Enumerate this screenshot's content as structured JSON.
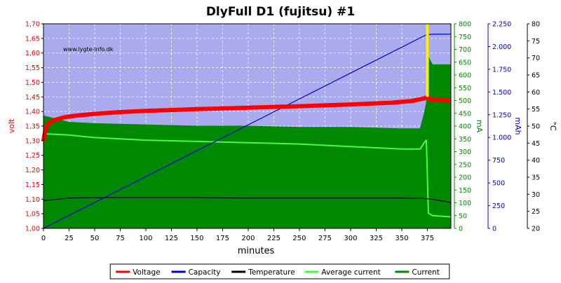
{
  "chart_data": {
    "type": "line",
    "title": "DlyFull D1 (fujitsu) #1",
    "watermark": "www.lygte-info.dk",
    "xlabel": "minutes",
    "xlim": [
      0,
      398
    ],
    "x_ticks": [
      "0",
      "25",
      "50",
      "75",
      "100",
      "125",
      "150",
      "175",
      "200",
      "225",
      "250",
      "275",
      "300",
      "325",
      "350",
      "375"
    ],
    "grid": true,
    "background_color": "#aaaaee",
    "axes": {
      "volt": {
        "label": "volt",
        "color": "#ee0000",
        "range": [
          1.0,
          1.7
        ],
        "ticks": [
          "1,00",
          "1,05",
          "1,10",
          "1,15",
          "1,20",
          "1,25",
          "1,30",
          "1,35",
          "1,40",
          "1,45",
          "1,50",
          "1,55",
          "1,60",
          "1,65",
          "1,70"
        ]
      },
      "ma": {
        "label": "mA",
        "color": "#008800",
        "range": [
          0,
          800
        ],
        "ticks": [
          "0",
          "50",
          "100",
          "150",
          "200",
          "250",
          "300",
          "350",
          "400",
          "450",
          "500",
          "550",
          "600",
          "650",
          "700",
          "750",
          "800"
        ]
      },
      "mah": {
        "label": "mAh",
        "color": "#0000cc",
        "range": [
          0,
          2250
        ],
        "ticks": [
          "0",
          "250",
          "500",
          "750",
          "1.000",
          "1.250",
          "1.500",
          "1.750",
          "2.000",
          "2.250"
        ]
      },
      "temp": {
        "label": "°C",
        "color": "#000000",
        "range": [
          20,
          80
        ],
        "ticks": [
          "20",
          "25",
          "30",
          "35",
          "40",
          "45",
          "50",
          "55",
          "60",
          "65",
          "70",
          "75",
          "80"
        ]
      }
    },
    "series": [
      {
        "name": "Voltage",
        "axis": "volt",
        "color": "#ff0000",
        "points": [
          [
            0,
            1.3
          ],
          [
            2,
            1.34
          ],
          [
            5,
            1.36
          ],
          [
            10,
            1.37
          ],
          [
            20,
            1.38
          ],
          [
            30,
            1.385
          ],
          [
            50,
            1.392
          ],
          [
            75,
            1.398
          ],
          [
            100,
            1.402
          ],
          [
            150,
            1.408
          ],
          [
            200,
            1.413
          ],
          [
            250,
            1.418
          ],
          [
            300,
            1.424
          ],
          [
            340,
            1.43
          ],
          [
            360,
            1.436
          ],
          [
            372,
            1.445
          ],
          [
            376,
            1.452
          ],
          [
            378,
            1.44
          ],
          [
            398,
            1.437
          ]
        ]
      },
      {
        "name": "Capacity",
        "axis": "mah",
        "color": "#0000cc",
        "points": [
          [
            0,
            0
          ],
          [
            374,
            2130
          ],
          [
            380,
            2135
          ],
          [
            398,
            2137
          ]
        ]
      },
      {
        "name": "Temperature",
        "axis": "temp",
        "color": "#000000",
        "points": [
          [
            0,
            28.2
          ],
          [
            10,
            28.4
          ],
          [
            25,
            28.9
          ],
          [
            50,
            29.0
          ],
          [
            100,
            29.0
          ],
          [
            150,
            29.0
          ],
          [
            200,
            28.9
          ],
          [
            250,
            28.9
          ],
          [
            300,
            28.9
          ],
          [
            350,
            28.9
          ],
          [
            370,
            28.8
          ],
          [
            380,
            28.5
          ],
          [
            398,
            27.6
          ]
        ]
      },
      {
        "name": "Average current",
        "axis": "ma",
        "color": "#44ff44",
        "points": [
          [
            0,
            370
          ],
          [
            25,
            365
          ],
          [
            50,
            355
          ],
          [
            100,
            345
          ],
          [
            150,
            340
          ],
          [
            200,
            335
          ],
          [
            250,
            330
          ],
          [
            300,
            320
          ],
          [
            350,
            310
          ],
          [
            368,
            310
          ],
          [
            372,
            335
          ],
          [
            374,
            345
          ],
          [
            376,
            60
          ],
          [
            380,
            50
          ],
          [
            398,
            45
          ]
        ]
      },
      {
        "name": "Current",
        "axis": "ma",
        "color": "#008800",
        "points": [
          [
            0,
            440
          ],
          [
            25,
            415
          ],
          [
            50,
            410
          ],
          [
            100,
            405
          ],
          [
            150,
            400
          ],
          [
            200,
            400
          ],
          [
            250,
            395
          ],
          [
            300,
            395
          ],
          [
            350,
            390
          ],
          [
            368,
            390
          ],
          [
            372,
            450
          ],
          [
            374,
            490
          ],
          [
            376,
            670
          ],
          [
            380,
            640
          ],
          [
            390,
            640
          ],
          [
            398,
            640
          ]
        ]
      }
    ],
    "marker": {
      "x": 375,
      "color": "#ffee00"
    },
    "legend": {
      "position": "bottom",
      "items": [
        "Voltage",
        "Capacity",
        "Temperature",
        "Average current",
        "Current"
      ]
    }
  }
}
